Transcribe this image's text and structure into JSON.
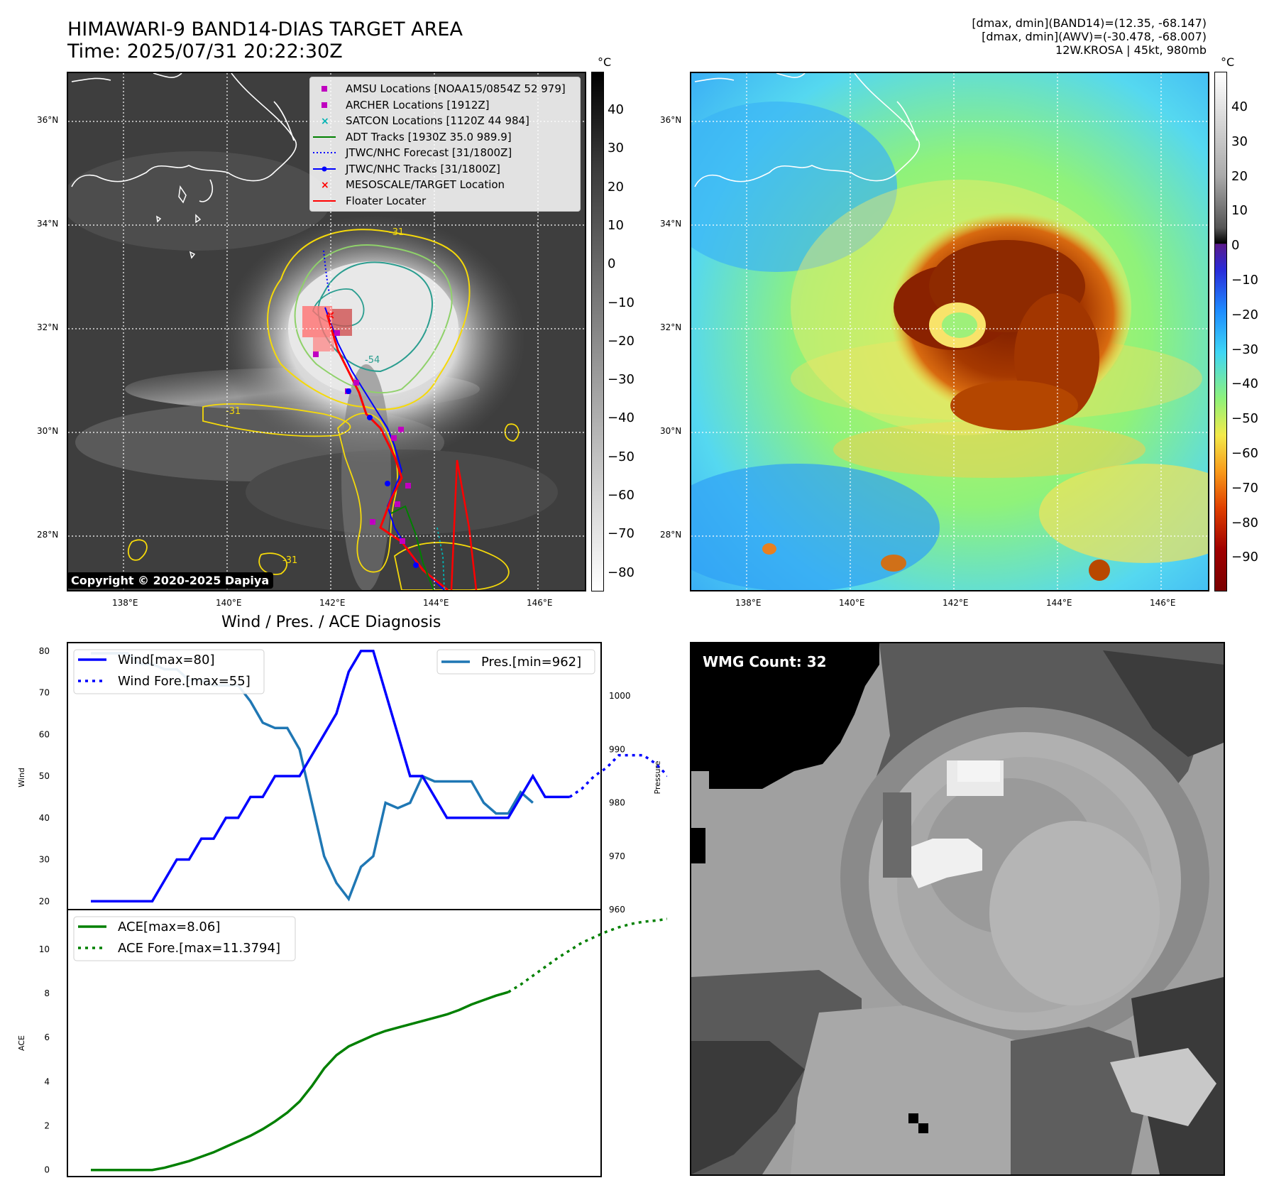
{
  "header": {
    "title": "HIMAWARI-9 BAND14-DIAS TARGET AREA",
    "time": "Time: 2025/07/31 20:22:30Z",
    "right_line1": "[dmax, dmin](BAND14)=(12.35, -68.147)",
    "right_line2": "[dmax, dmin](AWV)=(-30.478, -68.007)",
    "right_line3": "12W.KROSA | 45kt, 980mb"
  },
  "maps": {
    "lat_ticks": [
      "36°N",
      "34°N",
      "32°N",
      "30°N",
      "28°N"
    ],
    "lon_ticks": [
      "138°E",
      "140°E",
      "142°E",
      "144°E",
      "146°E"
    ],
    "copyright": "Copyright © 2020-2025 Dapiya",
    "legend": [
      {
        "label": "AMSU Locations [NOAA15/0854Z 52 979]",
        "marker": "square",
        "color": "#c000c0"
      },
      {
        "label": "ARCHER Locations [1912Z]",
        "marker": "square",
        "color": "#c000c0"
      },
      {
        "label": "SATCON Locations [1120Z 44 984]",
        "marker": "x",
        "color": "#00b3b3"
      },
      {
        "label": "ADT Tracks [1930Z 35.0 989.9]",
        "marker": "line",
        "color": "#008000"
      },
      {
        "label": "JTWC/NHC Forecast [31/1800Z]",
        "marker": "dotted",
        "color": "#0000ff"
      },
      {
        "label": "JTWC/NHC Tracks [31/1800Z]",
        "marker": "line-dot",
        "color": "#0000ff"
      },
      {
        "label": "MESOSCALE/TARGET Location",
        "marker": "x",
        "color": "#ff0000"
      },
      {
        "label": "Floater Locater",
        "marker": "line",
        "color": "#ff0000"
      }
    ],
    "colorbar_left": {
      "unit": "°C",
      "ticks": [
        "40",
        "30",
        "20",
        "10",
        "0",
        "−10",
        "−20",
        "−30",
        "−40",
        "−50",
        "−60",
        "−70",
        "−80"
      ]
    },
    "colorbar_right": {
      "unit": "°C",
      "ticks": [
        "40",
        "30",
        "20",
        "10",
        "0",
        "−10",
        "−20",
        "−30",
        "−40",
        "−50",
        "−60",
        "−70",
        "−80",
        "−90"
      ]
    },
    "contour_labels": [
      "-31",
      "-54",
      "-31",
      "-31"
    ]
  },
  "chart_data": [
    {
      "type": "line",
      "title": "Wind / Pres. / ACE Diagnosis",
      "ylabel": "Wind",
      "y2label": "Pressure",
      "ylim": [
        18,
        82
      ],
      "y2lim": [
        960,
        1010
      ],
      "y_ticks": [
        "80",
        "70",
        "60",
        "50",
        "40",
        "30",
        "20"
      ],
      "y2_ticks": [
        "1000",
        "990",
        "980",
        "970",
        "960"
      ],
      "series": [
        {
          "name": "Wind[max=80]",
          "color": "#0000ff",
          "style": "solid",
          "axis": "left",
          "values": [
            20,
            20,
            20,
            20,
            20,
            20,
            25,
            30,
            30,
            35,
            35,
            40,
            40,
            45,
            45,
            50,
            50,
            50,
            55,
            60,
            65,
            75,
            80,
            80,
            70,
            60,
            50,
            50,
            45,
            40,
            40,
            40,
            40,
            40,
            40,
            45,
            50,
            45,
            45,
            45
          ]
        },
        {
          "name": "Wind Fore.[max=55]",
          "color": "#0000ff",
          "style": "dotted",
          "axis": "left",
          "x_start": 39,
          "values": [
            45,
            47,
            50,
            52,
            55,
            55,
            55,
            53,
            50,
            47,
            47,
            45,
            40,
            35,
            35,
            35,
            30
          ]
        },
        {
          "name": "Pres.[min=962]",
          "color": "#1f77b4",
          "style": "solid",
          "axis": "right",
          "values": [
            1008,
            1008,
            1008,
            1008,
            1006,
            1006,
            1005,
            1005,
            1003,
            1003,
            1002,
            1002,
            1002,
            999,
            995,
            994,
            994,
            990,
            980,
            970,
            965,
            962,
            968,
            970,
            980,
            979,
            980,
            985,
            984,
            984,
            984,
            984,
            980,
            978,
            978,
            982,
            980
          ]
        }
      ]
    },
    {
      "type": "line",
      "ylabel": "ACE",
      "ylim": [
        -0.3,
        11.8
      ],
      "y_ticks": [
        "10",
        "8",
        "6",
        "4",
        "2",
        "0"
      ],
      "series": [
        {
          "name": "ACE[max=8.06]",
          "color": "#008000",
          "style": "solid",
          "values": [
            0,
            0,
            0,
            0,
            0,
            0,
            0.1,
            0.25,
            0.4,
            0.6,
            0.8,
            1.05,
            1.3,
            1.55,
            1.85,
            2.2,
            2.6,
            3.1,
            3.8,
            4.6,
            5.2,
            5.6,
            5.85,
            6.1,
            6.3,
            6.45,
            6.6,
            6.75,
            6.9,
            7.05,
            7.25,
            7.5,
            7.7,
            7.9,
            8.06
          ]
        },
        {
          "name": "ACE Fore.[max=11.3794]",
          "color": "#008000",
          "style": "dotted",
          "x_start": 34,
          "values": [
            8.06,
            8.4,
            8.8,
            9.2,
            9.6,
            9.95,
            10.3,
            10.55,
            10.8,
            11.0,
            11.15,
            11.25,
            11.3,
            11.3794
          ]
        }
      ]
    }
  ],
  "wmg": {
    "label": "WMG Count: 32"
  }
}
